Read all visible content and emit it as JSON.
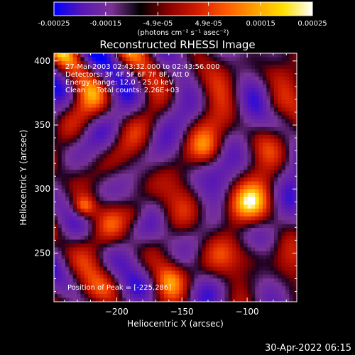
{
  "chart_data": {
    "type": "heatmap",
    "title": "Reconstructed RHESSI Image",
    "xlabel": "Heliocentric X (arcsec)",
    "ylabel": "Heliocentric Y (arcsec)",
    "xlim": [
      -248,
      -62
    ],
    "ylim": [
      212,
      406
    ],
    "x_ticks": [
      -200,
      -150,
      -100
    ],
    "y_ticks": [
      250,
      300,
      350,
      400
    ],
    "colorbar": {
      "range": [
        -0.00025,
        0.00025
      ],
      "ticks": [
        "-0.00025",
        "-0.00015",
        "-4.9e-05",
        "4.9e-05",
        "0.00015",
        "0.00025"
      ],
      "unit_label": "(photons cm⁻² s⁻¹ asec⁻²)",
      "colors": [
        "#0000ff",
        "#5a18b4",
        "#7b3296",
        "#000000",
        "#8a0000",
        "#d21c00",
        "#ff5a00",
        "#ffa000",
        "#ffe000",
        "#ffffff"
      ]
    },
    "annotations": [
      "27-Mar-2003 02:43:32.000 to 02:43:56.000",
      "Detectors: 3F 4F 5F 6F 7F 8F, Att 0",
      "Energy Range: 12.0 - 25.0 keV",
      "Clean     Total counts: 2.26E+03"
    ],
    "peak_text": "Position of Peak = [-225,286]",
    "peak": [
      -225,
      286
    ]
  },
  "footer": {
    "timestamp": "30-Apr-2022 06:15"
  }
}
